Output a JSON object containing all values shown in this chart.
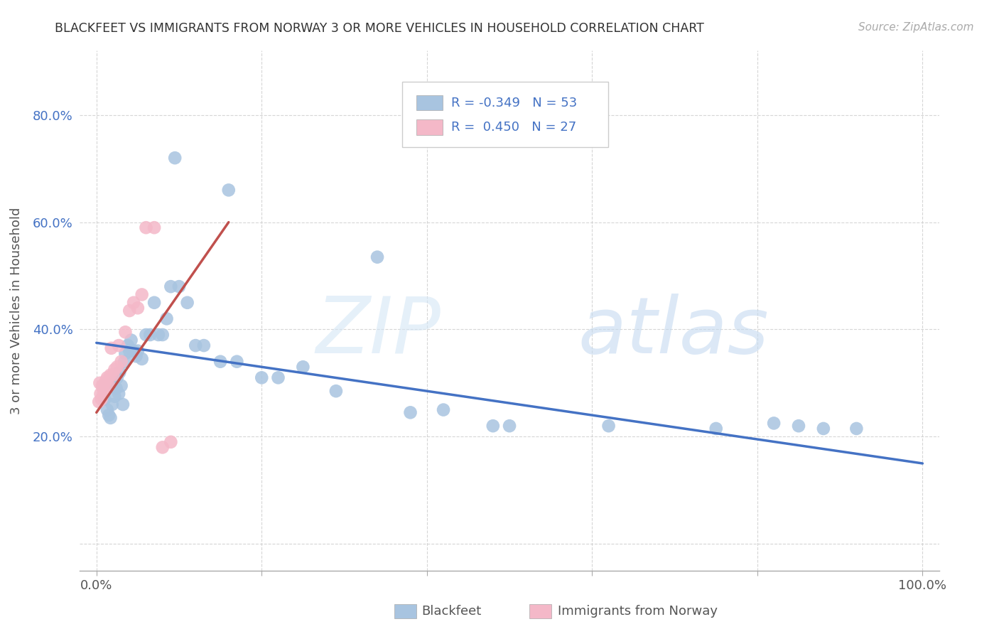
{
  "title": "BLACKFEET VS IMMIGRANTS FROM NORWAY 3 OR MORE VEHICLES IN HOUSEHOLD CORRELATION CHART",
  "source": "Source: ZipAtlas.com",
  "ylabel": "3 or more Vehicles in Household",
  "xlim": [
    -0.02,
    1.02
  ],
  "ylim": [
    -0.05,
    0.92
  ],
  "xticks": [
    0.0,
    0.2,
    0.4,
    0.6,
    0.8,
    1.0
  ],
  "xticklabels": [
    "0.0%",
    "",
    "",
    "",
    "",
    "100.0%"
  ],
  "yticks": [
    0.0,
    0.2,
    0.4,
    0.6,
    0.8
  ],
  "yticklabels": [
    "",
    "20.0%",
    "40.0%",
    "60.0%",
    "80.0%"
  ],
  "color_blue": "#a8c4e0",
  "color_pink": "#f4b8c8",
  "line_color_blue": "#4472c4",
  "line_color_pink": "#c0504d",
  "background": "#ffffff",
  "blue_line_x0": 0.0,
  "blue_line_y0": 0.375,
  "blue_line_x1": 1.0,
  "blue_line_y1": 0.15,
  "pink_line_x0": 0.0,
  "pink_line_y0": 0.245,
  "pink_line_x1": 0.16,
  "pink_line_y1": 0.6,
  "blue_pts_x": [
    0.008,
    0.01,
    0.013,
    0.015,
    0.017,
    0.019,
    0.02,
    0.022,
    0.024,
    0.025,
    0.027,
    0.028,
    0.03,
    0.032,
    0.034,
    0.035,
    0.038,
    0.04,
    0.042,
    0.045,
    0.048,
    0.05,
    0.055,
    0.06,
    0.065,
    0.07,
    0.075,
    0.08,
    0.085,
    0.09,
    0.1,
    0.11,
    0.12,
    0.13,
    0.15,
    0.17,
    0.2,
    0.22,
    0.25,
    0.29,
    0.38,
    0.42,
    0.48,
    0.5,
    0.62,
    0.75,
    0.82,
    0.85,
    0.88,
    0.92,
    0.095,
    0.16,
    0.34
  ],
  "blue_pts_y": [
    0.295,
    0.27,
    0.25,
    0.24,
    0.235,
    0.26,
    0.3,
    0.275,
    0.29,
    0.31,
    0.28,
    0.32,
    0.295,
    0.26,
    0.34,
    0.355,
    0.37,
    0.36,
    0.38,
    0.36,
    0.35,
    0.36,
    0.345,
    0.39,
    0.39,
    0.45,
    0.39,
    0.39,
    0.42,
    0.48,
    0.48,
    0.45,
    0.37,
    0.37,
    0.34,
    0.34,
    0.31,
    0.31,
    0.33,
    0.285,
    0.245,
    0.25,
    0.22,
    0.22,
    0.22,
    0.215,
    0.225,
    0.22,
    0.215,
    0.215,
    0.72,
    0.66,
    0.535
  ],
  "pink_pts_x": [
    0.003,
    0.004,
    0.005,
    0.006,
    0.007,
    0.008,
    0.009,
    0.01,
    0.012,
    0.013,
    0.015,
    0.017,
    0.018,
    0.02,
    0.022,
    0.025,
    0.027,
    0.03,
    0.035,
    0.04,
    0.045,
    0.05,
    0.055,
    0.06,
    0.07,
    0.08,
    0.09
  ],
  "pink_pts_y": [
    0.265,
    0.3,
    0.28,
    0.27,
    0.295,
    0.29,
    0.285,
    0.3,
    0.305,
    0.31,
    0.295,
    0.315,
    0.365,
    0.315,
    0.325,
    0.33,
    0.37,
    0.34,
    0.395,
    0.435,
    0.45,
    0.44,
    0.465,
    0.59,
    0.59,
    0.18,
    0.19
  ],
  "watermark_zip_color": "#d6e4f5",
  "watermark_atlas_color": "#c8dff5"
}
